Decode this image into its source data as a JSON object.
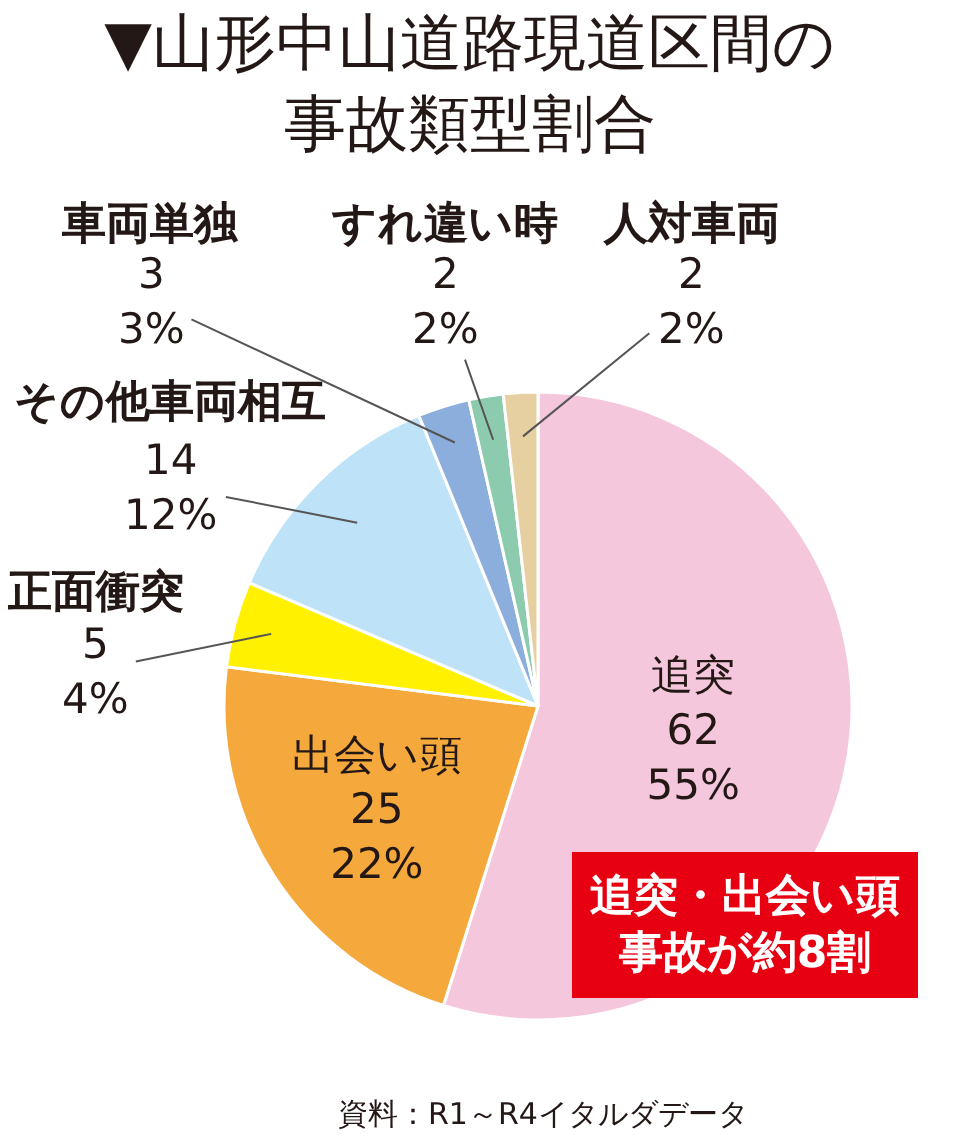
{
  "chart_data": {
    "type": "pie",
    "title": "▼山形中山道路現道区間の事故類型割合",
    "categories": [
      "追突",
      "出会い頭",
      "正面衝突",
      "その他車両相互",
      "車両単独",
      "すれ違い時",
      "人対車両"
    ],
    "values": [
      62,
      25,
      5,
      14,
      3,
      2,
      2
    ],
    "value_labels": [
      "62\n55%",
      "25\n22%",
      "5\n4%",
      "14\n12%",
      "3\n3%",
      "2\n2%",
      "2\n2%"
    ],
    "colors": [
      "#f5c7dc",
      "#f5a93c",
      "#fff100",
      "#bee3f8",
      "#8caedc",
      "#8ccbad",
      "#e6cfa0"
    ],
    "annotations": [
      "追突・出会い頭事故が約8割",
      "資料：R1～R4イタルダデータ"
    ]
  }
}
